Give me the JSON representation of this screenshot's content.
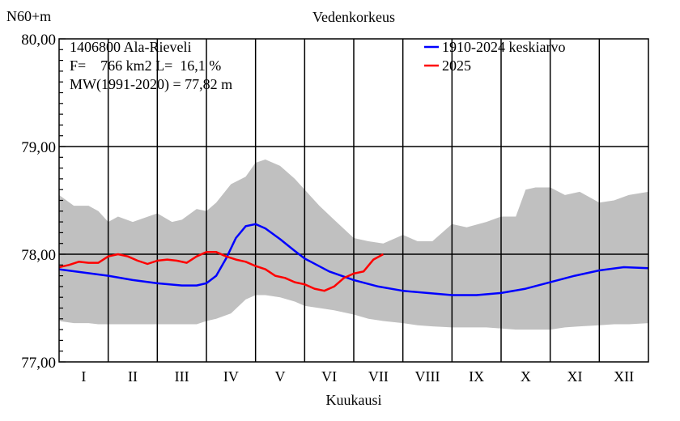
{
  "chart_data": {
    "type": "line",
    "title": "Vedenkorkeus",
    "ylabel": "N60+m",
    "xlabel": "Kuukausi",
    "ylim": [
      77.0,
      80.0
    ],
    "yticks": [
      "77,00",
      "78,00",
      "79,00",
      "80,00"
    ],
    "yticks_values": [
      77.0,
      78.0,
      79.0,
      80.0
    ],
    "categories": [
      "I",
      "II",
      "III",
      "IV",
      "V",
      "VI",
      "VII",
      "VIII",
      "IX",
      "X",
      "XI",
      "XII"
    ],
    "xlim": [
      0,
      12
    ],
    "info": {
      "line1": "1406800 Ala-Rieveli",
      "line2": "F=    766 km2 L=  16,1 %",
      "line3": "MW(1991-2020) = 77,82 m"
    },
    "legend": [
      {
        "name": "1910-2024 keskiarvo",
        "color": "#0000ff"
      },
      {
        "name": "2025",
        "color": "#ff0000"
      }
    ],
    "legend_position": "top-right",
    "grid": true,
    "band": {
      "color": "#c0c0c0",
      "x": [
        0.0,
        0.3,
        0.6,
        0.8,
        1.0,
        1.2,
        1.5,
        2.0,
        2.3,
        2.5,
        2.8,
        3.0,
        3.2,
        3.5,
        3.8,
        4.0,
        4.2,
        4.5,
        4.8,
        5.0,
        5.3,
        5.6,
        6.0,
        6.3,
        6.6,
        7.0,
        7.3,
        7.6,
        8.0,
        8.3,
        8.7,
        9.0,
        9.3,
        9.5,
        9.7,
        10.0,
        10.3,
        10.6,
        11.0,
        11.3,
        11.6,
        12.0
      ],
      "upper": [
        78.55,
        78.45,
        78.45,
        78.4,
        78.3,
        78.35,
        78.3,
        78.38,
        78.3,
        78.32,
        78.42,
        78.4,
        78.48,
        78.65,
        78.72,
        78.85,
        78.88,
        78.82,
        78.7,
        78.6,
        78.45,
        78.32,
        78.15,
        78.12,
        78.1,
        78.18,
        78.12,
        78.12,
        78.28,
        78.25,
        78.3,
        78.35,
        78.35,
        78.6,
        78.62,
        78.62,
        78.55,
        78.58,
        78.48,
        78.5,
        78.55,
        78.58
      ],
      "lower": [
        77.38,
        77.36,
        77.36,
        77.35,
        77.35,
        77.35,
        77.35,
        77.35,
        77.35,
        77.35,
        77.35,
        77.38,
        77.4,
        77.45,
        77.58,
        77.62,
        77.62,
        77.6,
        77.56,
        77.52,
        77.5,
        77.48,
        77.44,
        77.4,
        77.38,
        77.36,
        77.34,
        77.33,
        77.32,
        77.32,
        77.32,
        77.31,
        77.3,
        77.3,
        77.3,
        77.3,
        77.32,
        77.33,
        77.34,
        77.35,
        77.35,
        77.36
      ]
    },
    "series": [
      {
        "name": "1910-2024 keskiarvo",
        "color": "#0000ff",
        "x": [
          0.0,
          0.5,
          1.0,
          1.5,
          2.0,
          2.5,
          2.8,
          3.0,
          3.2,
          3.4,
          3.6,
          3.8,
          4.0,
          4.2,
          4.5,
          4.8,
          5.0,
          5.5,
          6.0,
          6.5,
          7.0,
          7.5,
          8.0,
          8.5,
          9.0,
          9.5,
          10.0,
          10.5,
          11.0,
          11.5,
          12.0
        ],
        "y": [
          77.86,
          77.83,
          77.8,
          77.76,
          77.73,
          77.71,
          77.71,
          77.73,
          77.8,
          77.96,
          78.15,
          78.26,
          78.28,
          78.24,
          78.14,
          78.03,
          77.96,
          77.84,
          77.76,
          77.7,
          77.66,
          77.64,
          77.62,
          77.62,
          77.64,
          77.68,
          77.74,
          77.8,
          77.85,
          77.88,
          77.87
        ]
      },
      {
        "name": "2025",
        "color": "#ff0000",
        "x": [
          0.0,
          0.2,
          0.4,
          0.6,
          0.8,
          1.0,
          1.2,
          1.4,
          1.6,
          1.8,
          2.0,
          2.2,
          2.4,
          2.6,
          2.8,
          3.0,
          3.2,
          3.4,
          3.6,
          3.8,
          4.0,
          4.2,
          4.4,
          4.6,
          4.8,
          5.0,
          5.2,
          5.4,
          5.6,
          5.8,
          6.0,
          6.2,
          6.4,
          6.6
        ],
        "y": [
          77.88,
          77.9,
          77.93,
          77.92,
          77.92,
          77.98,
          78.0,
          77.98,
          77.94,
          77.91,
          77.94,
          77.95,
          77.94,
          77.92,
          77.98,
          78.02,
          78.02,
          77.98,
          77.95,
          77.93,
          77.89,
          77.86,
          77.8,
          77.78,
          77.74,
          77.72,
          77.68,
          77.66,
          77.7,
          77.78,
          77.82,
          77.84,
          77.95,
          78.0
        ]
      }
    ]
  }
}
